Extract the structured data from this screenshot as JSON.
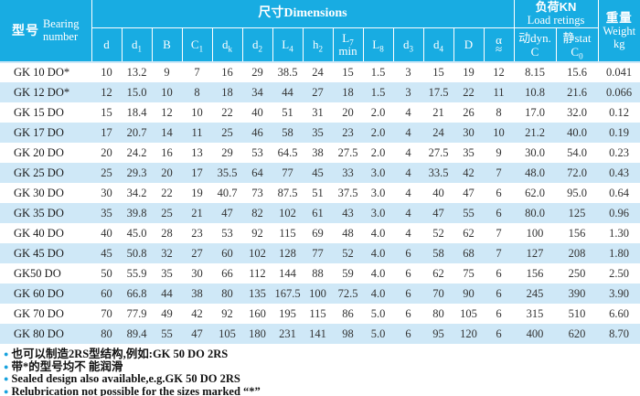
{
  "colors": {
    "header_bg": "#18ace2",
    "row_alt": "#cfe8f7",
    "row_base": "#ffffff",
    "header_text": "#ffffff",
    "body_text": "#333333",
    "bullet": "#18a2de"
  },
  "table": {
    "header": {
      "bearing_cn": "型号",
      "bearing_en_line1": "Bearing",
      "bearing_en_line2": "number",
      "dimensions_label": "尺寸Dimensions",
      "load_cn": "负荷KN",
      "load_en": "Load retings",
      "weight_cn": "重量",
      "weight_en": "Weight",
      "weight_unit": "kg",
      "dyn_line1": "动dyn.",
      "dyn_line2": "C",
      "stat_line1": "静stat",
      "stat_main": "C",
      "stat_sub": "0",
      "dim_cols": [
        {
          "id": "d",
          "main": "d"
        },
        {
          "id": "d1",
          "main": "d",
          "sub": "1"
        },
        {
          "id": "B",
          "main": "B"
        },
        {
          "id": "C1",
          "main": "C",
          "sub": "1"
        },
        {
          "id": "dk",
          "main": "d",
          "sub": "k"
        },
        {
          "id": "d2",
          "main": "d",
          "sub": "2"
        },
        {
          "id": "L4",
          "main": "L",
          "sub": "4"
        },
        {
          "id": "h2",
          "main": "h",
          "sub": "2"
        },
        {
          "id": "L7min",
          "main": "L",
          "sub": "7",
          "line2": "min"
        },
        {
          "id": "L8",
          "main": "L",
          "sub": "8"
        },
        {
          "id": "d3",
          "main": "d",
          "sub": "3"
        },
        {
          "id": "d4",
          "main": "d",
          "sub": "4"
        },
        {
          "id": "D",
          "main": "D"
        },
        {
          "id": "alpha",
          "main": "α",
          "line2": "≈"
        }
      ]
    },
    "rows": [
      {
        "name": "GK 10 DO*",
        "values": [
          "10",
          "13.2",
          "9",
          "7",
          "16",
          "29",
          "38.5",
          "24",
          "15",
          "1.5",
          "3",
          "15",
          "19",
          "12",
          "8.15",
          "15.6",
          "0.041"
        ]
      },
      {
        "name": "GK 12 DO*",
        "values": [
          "12",
          "15.0",
          "10",
          "8",
          "18",
          "34",
          "44",
          "27",
          "18",
          "1.5",
          "3",
          "17.5",
          "22",
          "11",
          "10.8",
          "21.6",
          "0.066"
        ]
      },
      {
        "name": "GK 15 DO",
        "values": [
          "15",
          "18.4",
          "12",
          "10",
          "22",
          "40",
          "51",
          "31",
          "20",
          "2.0",
          "4",
          "21",
          "26",
          "8",
          "17.0",
          "32.0",
          "0.12"
        ]
      },
      {
        "name": "GK 17 DO",
        "values": [
          "17",
          "20.7",
          "14",
          "11",
          "25",
          "46",
          "58",
          "35",
          "23",
          "2.0",
          "4",
          "24",
          "30",
          "10",
          "21.2",
          "40.0",
          "0.19"
        ]
      },
      {
        "name": "GK 20 DO",
        "values": [
          "20",
          "24.2",
          "16",
          "13",
          "29",
          "53",
          "64.5",
          "38",
          "27.5",
          "2.0",
          "4",
          "27.5",
          "35",
          "9",
          "30.0",
          "54.0",
          "0.23"
        ]
      },
      {
        "name": "GK 25 DO",
        "values": [
          "25",
          "29.3",
          "20",
          "17",
          "35.5",
          "64",
          "77",
          "45",
          "33",
          "3.0",
          "4",
          "33.5",
          "42",
          "7",
          "48.0",
          "72.0",
          "0.43"
        ]
      },
      {
        "name": "GK 30 DO",
        "values": [
          "30",
          "34.2",
          "22",
          "19",
          "40.7",
          "73",
          "87.5",
          "51",
          "37.5",
          "3.0",
          "4",
          "40",
          "47",
          "6",
          "62.0",
          "95.0",
          "0.64"
        ]
      },
      {
        "name": "GK 35 DO",
        "values": [
          "35",
          "39.8",
          "25",
          "21",
          "47",
          "82",
          "102",
          "61",
          "43",
          "3.0",
          "4",
          "47",
          "55",
          "6",
          "80.0",
          "125",
          "0.96"
        ]
      },
      {
        "name": "GK 40 DO",
        "values": [
          "40",
          "45.0",
          "28",
          "23",
          "53",
          "92",
          "115",
          "69",
          "48",
          "4.0",
          "4",
          "52",
          "62",
          "7",
          "100",
          "156",
          "1.30"
        ]
      },
      {
        "name": "GK 45 DO",
        "values": [
          "45",
          "50.8",
          "32",
          "27",
          "60",
          "102",
          "128",
          "77",
          "52",
          "4.0",
          "6",
          "58",
          "68",
          "7",
          "127",
          "208",
          "1.80"
        ]
      },
      {
        "name": "GK50 DO",
        "values": [
          "50",
          "55.9",
          "35",
          "30",
          "66",
          "112",
          "144",
          "88",
          "59",
          "4.0",
          "6",
          "62",
          "75",
          "6",
          "156",
          "250",
          "2.50"
        ]
      },
      {
        "name": "GK 60 DO",
        "values": [
          "60",
          "66.8",
          "44",
          "38",
          "80",
          "135",
          "167.5",
          "100",
          "72.5",
          "4.0",
          "6",
          "70",
          "90",
          "6",
          "245",
          "390",
          "3.90"
        ]
      },
      {
        "name": "GK 70 DO",
        "values": [
          "70",
          "77.9",
          "49",
          "42",
          "92",
          "160",
          "195",
          "115",
          "86",
          "5.0",
          "6",
          "80",
          "105",
          "6",
          "315",
          "510",
          "6.60"
        ]
      },
      {
        "name": "GK 80 DO",
        "values": [
          "80",
          "89.4",
          "55",
          "47",
          "105",
          "180",
          "231",
          "141",
          "98",
          "5.0",
          "6",
          "95",
          "120",
          "6",
          "400",
          "620",
          "8.70"
        ]
      }
    ]
  },
  "notes": [
    {
      "text": "也可以制造2RS型结构,例如:GK 50 DO 2RS"
    },
    {
      "text": "带*的型号均不 能润滑"
    },
    {
      "text": "Sealed design also available,e.g.GK 50 DO 2RS"
    },
    {
      "text": "Relubrication not possible for the sizes marked “*”"
    }
  ]
}
